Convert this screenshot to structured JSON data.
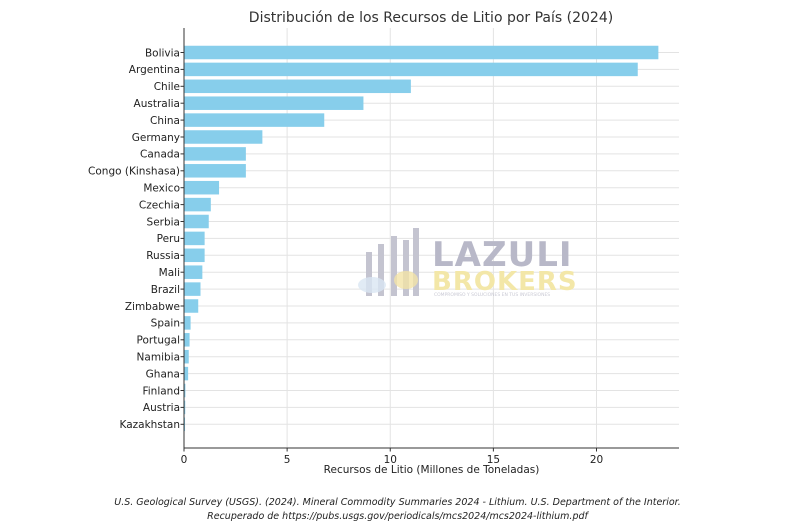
{
  "chart_data": {
    "type": "bar",
    "orientation": "horizontal",
    "title": "Distribución de los Recursos de Litio por País (2024)",
    "xlabel": "Recursos de Litio (Millones de Toneladas)",
    "ylabel": "",
    "xlim": [
      0,
      24
    ],
    "xticks": [
      0,
      5,
      10,
      15,
      20
    ],
    "grid": true,
    "bar_color": "#87ceeb",
    "categories": [
      "Bolivia",
      "Argentina",
      "Chile",
      "Australia",
      "China",
      "Germany",
      "Canada",
      "Congo (Kinshasa)",
      "Mexico",
      "Czechia",
      "Serbia",
      "Peru",
      "Russia",
      "Mali",
      "Brazil",
      "Zimbabwe",
      "Spain",
      "Portugal",
      "Namibia",
      "Ghana",
      "Finland",
      "Austria",
      "Kazakhstan"
    ],
    "values": [
      23,
      22,
      11,
      8.7,
      6.8,
      3.8,
      3,
      3,
      1.7,
      1.3,
      1.2,
      1,
      1,
      0.89,
      0.8,
      0.69,
      0.32,
      0.27,
      0.23,
      0.2,
      0.068,
      0.06,
      0.05
    ]
  },
  "watermark": {
    "line1": "LAZULI",
    "line2": "BROKERS",
    "tagline": "COMPROMISO Y SOLUCIONES EN TUS INVERSIONES"
  },
  "source": {
    "line1": "U.S. Geological Survey (USGS). (2024). Mineral Commodity Summaries 2024 - Lithium. U.S. Department of the Interior.",
    "line2": "Recuperado de https://pubs.usgs.gov/periodicals/mcs2024/mcs2024-lithium.pdf"
  }
}
